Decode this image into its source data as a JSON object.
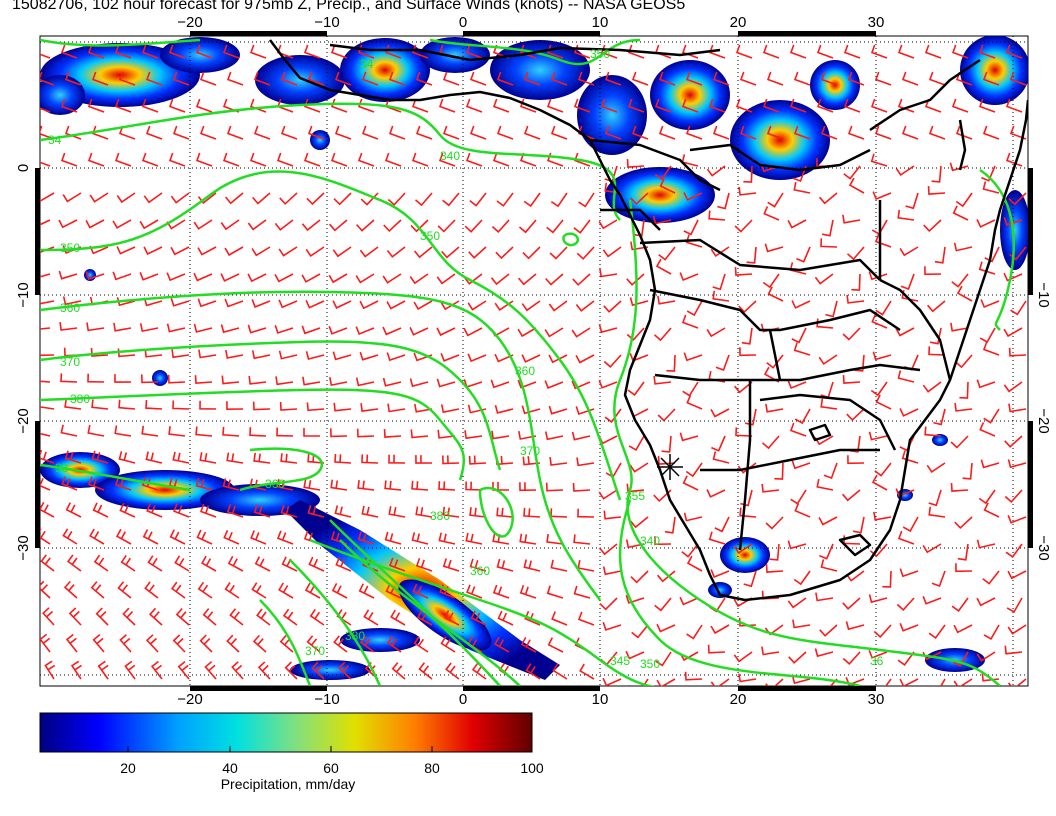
{
  "title": "15082706, 102 hour forecast for 975mb Z, Precip., and Surface Winds (knots) -- NASA GEOS5",
  "axes": {
    "lon_ticks": [
      "−20",
      "−10",
      "0",
      "10",
      "20",
      "30"
    ],
    "lat_ticks": [
      "0",
      "−10",
      "−20",
      "−30"
    ],
    "lat_ticks_right": [
      "−10",
      "−20",
      "−30"
    ]
  },
  "contours": {
    "color": "#22dd22",
    "labels": [
      "34",
      "340",
      "350",
      "350",
      "360",
      "370",
      "380",
      "360",
      "370",
      "380",
      "360",
      "355",
      "340",
      "360",
      "370",
      "380",
      "36",
      "345",
      "350",
      "33",
      "34",
      "350"
    ]
  },
  "wind_barb_color": "#ff1a1a",
  "coast_color": "#000000",
  "colorbar": {
    "ticks": [
      "20",
      "40",
      "60",
      "80",
      "100"
    ],
    "label": "Precipitation, mm/day",
    "range": [
      0,
      100
    ]
  },
  "marker": {
    "symbol": "star"
  }
}
